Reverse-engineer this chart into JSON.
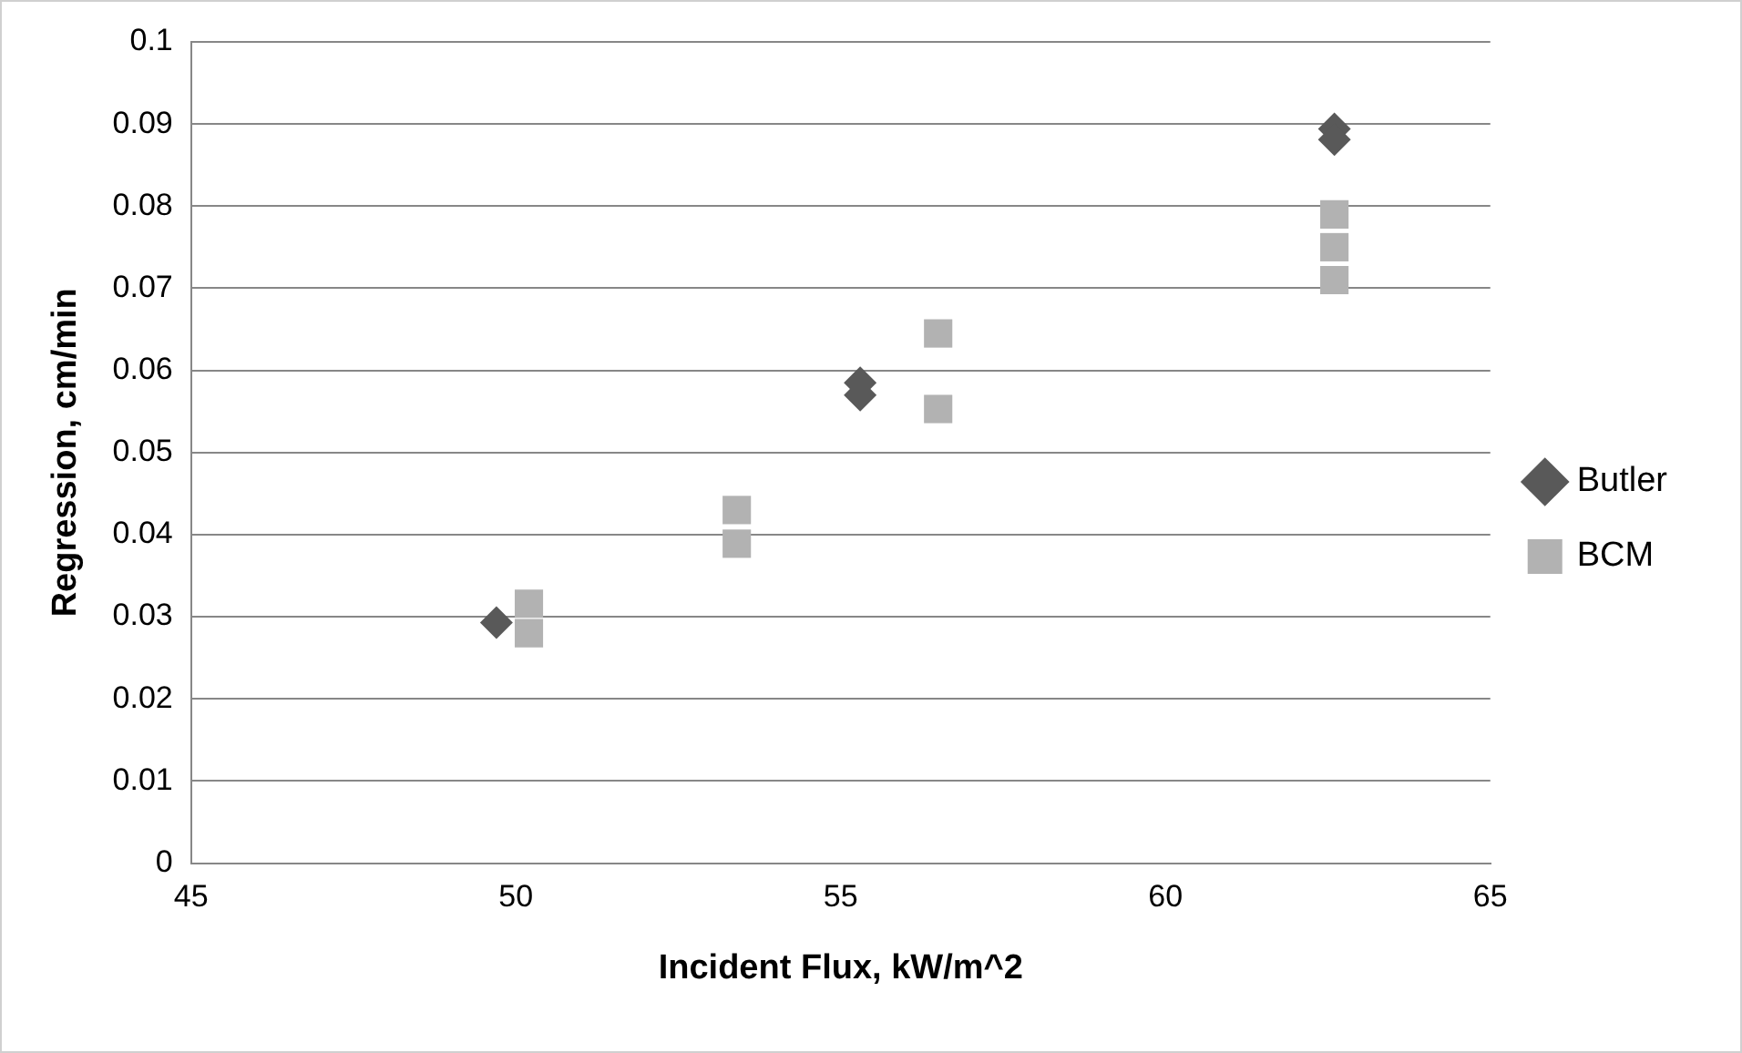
{
  "chart_data": {
    "type": "scatter",
    "xlabel": "Incident Flux, kW/m^2",
    "ylabel": "Regression, cm/min",
    "xlim": [
      45,
      65
    ],
    "xticks": [
      45,
      50,
      55,
      60,
      65
    ],
    "ylim": [
      0,
      0.1
    ],
    "yticks": [
      0,
      0.01,
      0.02,
      0.03,
      0.04,
      0.05,
      0.06,
      0.07,
      0.08,
      0.09,
      0.1
    ],
    "grid": "y",
    "legend": "right",
    "series": [
      {
        "name": "Butler",
        "color": "#595959",
        "marker": "diamond",
        "x": [
          49.7,
          55.3,
          55.3,
          62.6,
          62.6
        ],
        "values": [
          0.0293,
          0.0585,
          0.057,
          0.0894,
          0.0881
        ]
      },
      {
        "name": "BCM",
        "color": "#b2b2b2",
        "marker": "square",
        "x": [
          50.2,
          50.2,
          53.4,
          53.4,
          56.5,
          56.5,
          62.6,
          62.6,
          62.6
        ],
        "values": [
          0.0316,
          0.028,
          0.043,
          0.0389,
          0.0645,
          0.0553,
          0.079,
          0.075,
          0.071
        ]
      }
    ]
  }
}
